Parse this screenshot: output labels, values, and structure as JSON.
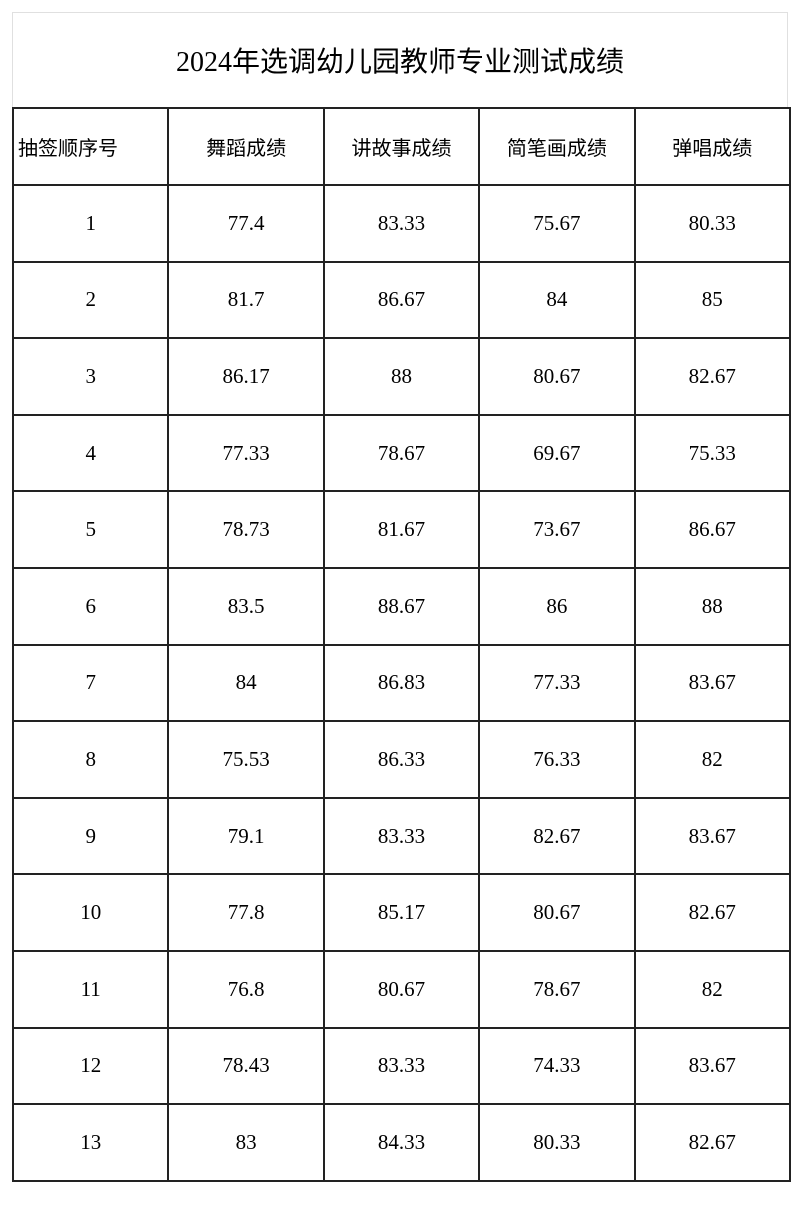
{
  "title": "2024年选调幼儿园教师专业测试成绩",
  "table": {
    "headers": [
      "抽签顺序号",
      "舞蹈成绩",
      "讲故事成绩",
      "简笔画成绩",
      "弹唱成绩"
    ],
    "rows": [
      [
        "1",
        "77.4",
        "83.33",
        "75.67",
        "80.33"
      ],
      [
        "2",
        "81.7",
        "86.67",
        "84",
        "85"
      ],
      [
        "3",
        "86.17",
        "88",
        "80.67",
        "82.67"
      ],
      [
        "4",
        "77.33",
        "78.67",
        "69.67",
        "75.33"
      ],
      [
        "5",
        "78.73",
        "81.67",
        "73.67",
        "86.67"
      ],
      [
        "6",
        "83.5",
        "88.67",
        "86",
        "88"
      ],
      [
        "7",
        "84",
        "86.83",
        "77.33",
        "83.67"
      ],
      [
        "8",
        "75.53",
        "86.33",
        "76.33",
        "82"
      ],
      [
        "9",
        "79.1",
        "83.33",
        "82.67",
        "83.67"
      ],
      [
        "10",
        "77.8",
        "85.17",
        "80.67",
        "82.67"
      ],
      [
        "11",
        "76.8",
        "80.67",
        "78.67",
        "82"
      ],
      [
        "12",
        "78.43",
        "83.33",
        "74.33",
        "83.67"
      ],
      [
        "13",
        "83",
        "84.33",
        "80.33",
        "82.67"
      ]
    ]
  }
}
